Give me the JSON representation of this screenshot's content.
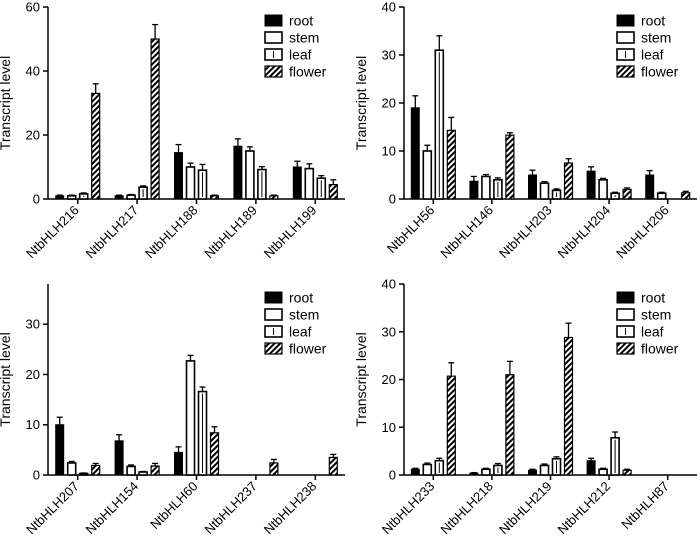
{
  "chart_data": [
    {
      "type": "bar",
      "title": "",
      "ylabel": "Transcript level",
      "ylim": [
        0,
        60
      ],
      "yticks": [
        "0",
        "20",
        "40",
        "60"
      ],
      "categories": [
        "NtbHLH216",
        "NtbHLH217",
        "NtbHLH188",
        "NtbHLH189",
        "NtbHLH199"
      ],
      "legend": [
        "root",
        "stem",
        "leaf",
        "flower"
      ],
      "legend_position": "top-right",
      "series": [
        {
          "name": "root",
          "values": [
            1.0,
            1.0,
            14.5,
            16.5,
            10.0
          ],
          "errors": [
            0.2,
            0.2,
            2.5,
            2.3,
            1.8
          ]
        },
        {
          "name": "stem",
          "values": [
            1.0,
            1.2,
            10.0,
            15.0,
            9.5
          ],
          "errors": [
            0.2,
            0.2,
            1.2,
            1.3,
            1.5
          ]
        },
        {
          "name": "leaf",
          "values": [
            1.6,
            3.7,
            9.0,
            9.2,
            6.5
          ],
          "errors": [
            0.3,
            0.4,
            1.8,
            0.9,
            0.8
          ]
        },
        {
          "name": "flower",
          "values": [
            33.0,
            50.0,
            1.0,
            1.0,
            4.5
          ],
          "errors": [
            3.0,
            4.5,
            0.2,
            0.2,
            1.5
          ]
        }
      ]
    },
    {
      "type": "bar",
      "title": "",
      "ylabel": "Transcript level",
      "ylim": [
        0,
        40
      ],
      "yticks": [
        "0",
        "10",
        "20",
        "30",
        "40"
      ],
      "categories": [
        "NtbHLH56",
        "NtbHLH146",
        "NtbHLH203",
        "NtbHLH204",
        "NtbHLH206"
      ],
      "legend": [
        "root",
        "stem",
        "leaf",
        "flower"
      ],
      "legend_position": "top-right",
      "series": [
        {
          "name": "root",
          "values": [
            19.0,
            3.7,
            5.0,
            5.8,
            5.0
          ],
          "errors": [
            2.5,
            1.0,
            1.0,
            0.9,
            0.9
          ]
        },
        {
          "name": "stem",
          "values": [
            10.0,
            4.7,
            3.3,
            4.0,
            1.2
          ],
          "errors": [
            1.2,
            0.4,
            0.3,
            0.3,
            0.2
          ]
        },
        {
          "name": "leaf",
          "values": [
            31.0,
            4.0,
            1.8,
            1.2,
            0.0
          ],
          "errors": [
            3.0,
            0.4,
            0.3,
            0.2,
            0.0
          ]
        },
        {
          "name": "flower",
          "values": [
            14.3,
            13.3,
            7.5,
            2.0,
            1.3
          ],
          "errors": [
            2.7,
            0.5,
            0.9,
            0.3,
            0.3
          ]
        }
      ]
    },
    {
      "type": "bar",
      "title": "",
      "ylabel": "Transcript level",
      "ylim": [
        0,
        38
      ],
      "yticks": [
        "0",
        "10",
        "20",
        "30"
      ],
      "categories": [
        "NtbHLH207",
        "NtbHLH154",
        "NtbHLH60",
        "NtbHLH237",
        "NtbHLH238"
      ],
      "legend": [
        "root",
        "stem",
        "leaf",
        "flower"
      ],
      "legend_position": "top-right",
      "series": [
        {
          "name": "root",
          "values": [
            10.0,
            6.8,
            4.5,
            0.0,
            0.0
          ],
          "errors": [
            1.5,
            1.2,
            1.1,
            0.0,
            0.0
          ]
        },
        {
          "name": "stem",
          "values": [
            2.4,
            1.7,
            22.7,
            0.0,
            0.0
          ],
          "errors": [
            0.3,
            0.3,
            1.1,
            0.0,
            0.0
          ]
        },
        {
          "name": "leaf",
          "values": [
            0.3,
            0.6,
            16.6,
            0.0,
            0.0
          ],
          "errors": [
            0.1,
            0.1,
            0.9,
            0.0,
            0.0
          ]
        },
        {
          "name": "flower",
          "values": [
            1.9,
            1.8,
            8.4,
            2.4,
            3.5
          ],
          "errors": [
            0.4,
            0.5,
            1.2,
            0.7,
            0.6
          ]
        }
      ]
    },
    {
      "type": "bar",
      "title": "",
      "ylabel": "Transcript level",
      "ylim": [
        0,
        40
      ],
      "yticks": [
        "0",
        "10",
        "20",
        "30",
        "40"
      ],
      "categories": [
        "NtbHLH233",
        "NtbHLH218",
        "NtbHLH219",
        "NtbHLH212",
        "NtbHLH87"
      ],
      "legend": [
        "root",
        "stem",
        "leaf",
        "flower"
      ],
      "legend_position": "top-right",
      "series": [
        {
          "name": "root",
          "values": [
            1.2,
            0.4,
            1.0,
            3.0,
            0.0
          ],
          "errors": [
            0.2,
            0.1,
            0.2,
            0.5,
            0.0
          ]
        },
        {
          "name": "stem",
          "values": [
            2.2,
            1.2,
            2.0,
            1.2,
            0.0
          ],
          "errors": [
            0.3,
            0.2,
            0.3,
            0.2,
            0.0
          ]
        },
        {
          "name": "leaf",
          "values": [
            3.0,
            2.0,
            3.4,
            7.8,
            0.0
          ],
          "errors": [
            0.5,
            0.4,
            0.4,
            1.2,
            0.0
          ]
        },
        {
          "name": "flower",
          "values": [
            20.7,
            21.0,
            28.8,
            1.0,
            0.0
          ],
          "errors": [
            2.8,
            2.8,
            3.0,
            0.2,
            0.0
          ]
        }
      ]
    }
  ]
}
